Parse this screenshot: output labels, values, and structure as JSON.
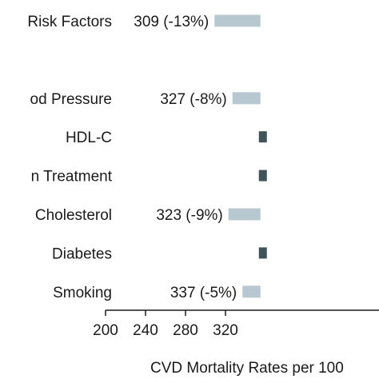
{
  "chart_data": {
    "type": "bar",
    "orientation": "horizontal",
    "categories": [
      "Risk Factors",
      "",
      "od Pressure",
      "HDL-C",
      "n Treatment",
      "Cholesterol",
      "Diabetes",
      "Smoking"
    ],
    "values": [
      309,
      null,
      327,
      null,
      null,
      323,
      null,
      337
    ],
    "value_labels": [
      "309 (-13%)",
      "",
      "327 (-8%)",
      "",
      "",
      "323 (-9%)",
      "",
      "337 (-5%)"
    ],
    "xlabel": "CVD Mortality Rates per 100",
    "xticks": [
      200,
      240,
      280,
      320
    ],
    "xlim": [
      200,
      355
    ],
    "reference_value": 355,
    "grid": false,
    "colors": {
      "bar": "#b8c8d0",
      "marker": "#3f5459",
      "axis": "#1a1a1a"
    }
  }
}
